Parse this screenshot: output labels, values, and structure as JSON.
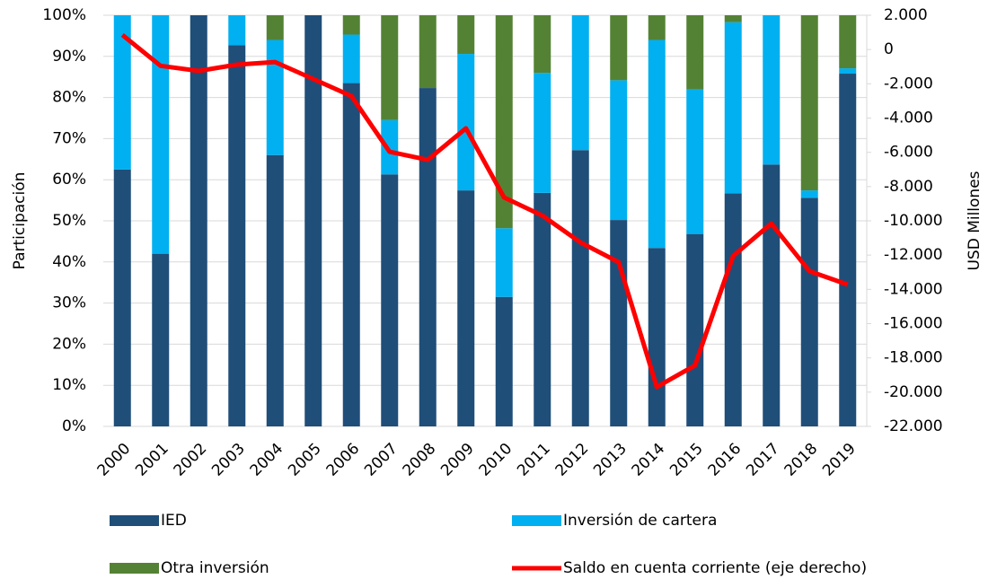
{
  "chart_data": {
    "type": "bar-line",
    "y_label": "Participación",
    "y2_label": "USD Millones",
    "categories": [
      "2000",
      "2001",
      "2002",
      "2003",
      "2004",
      "2005",
      "2006",
      "2007",
      "2008",
      "2009",
      "2010",
      "2011",
      "2012",
      "2013",
      "2014",
      "2015",
      "2016",
      "2017",
      "2018",
      "2019"
    ],
    "series": [
      {
        "name": "IED",
        "type": "bar",
        "color": "#1f4e79",
        "values": [
          62.5,
          42,
          100,
          92.7,
          66,
          100,
          83.5,
          61.3,
          82.3,
          57.4,
          31.5,
          56.8,
          67.2,
          50.2,
          43.4,
          46.8,
          56.7,
          63.7,
          55.6,
          85.8
        ]
      },
      {
        "name": "Inversión de cartera",
        "type": "bar",
        "color": "#00b0f0",
        "values": [
          37.5,
          58,
          0,
          7.3,
          28,
          0,
          11.8,
          13.2,
          0,
          33.2,
          16.7,
          29.2,
          32.8,
          34,
          50.6,
          35.2,
          41.6,
          36.3,
          1.8,
          1.3
        ]
      },
      {
        "name": "Otra inversión",
        "type": "bar",
        "color": "#548235",
        "values": [
          0,
          0,
          0,
          0,
          6,
          0,
          4.7,
          25.5,
          17.7,
          9.4,
          51.8,
          14,
          0,
          15.8,
          6,
          18,
          1.7,
          0,
          42.6,
          12.9
        ]
      },
      {
        "name": "Saldo en cuenta corriente (eje derecho)",
        "type": "line",
        "axis": "y2",
        "color": "#ff0000",
        "values": [
          850,
          -950,
          -1250,
          -880,
          -730,
          -1720,
          -2720,
          -5970,
          -6440,
          -4600,
          -8640,
          -9690,
          -11260,
          -12410,
          -19700,
          -18440,
          -12050,
          -10160,
          -12940,
          -13720
        ]
      }
    ],
    "ylim": [
      0,
      100
    ],
    "yticks": [
      {
        "value": 0,
        "label": "0%"
      },
      {
        "value": 10,
        "label": "10%"
      },
      {
        "value": 20,
        "label": "20%"
      },
      {
        "value": 30,
        "label": "30%"
      },
      {
        "value": 40,
        "label": "40%"
      },
      {
        "value": 50,
        "label": "50%"
      },
      {
        "value": 60,
        "label": "60%"
      },
      {
        "value": 70,
        "label": "70%"
      },
      {
        "value": 80,
        "label": "80%"
      },
      {
        "value": 90,
        "label": "90%"
      },
      {
        "value": 100,
        "label": "100%"
      }
    ],
    "y2lim": [
      -22000,
      2000
    ],
    "y2ticks": [
      {
        "value": 2000,
        "label": "2.000"
      },
      0,
      {
        "value": -2000,
        "label": "-2.000"
      },
      {
        "value": -4000,
        "label": "-4.000"
      },
      {
        "value": -6000,
        "label": "-6.000"
      },
      {
        "value": -8000,
        "label": "-8.000"
      },
      {
        "value": -10000,
        "label": "-10.000"
      },
      {
        "value": -12000,
        "label": "-12.000"
      },
      {
        "value": -14000,
        "label": "-14.000"
      },
      {
        "value": -16000,
        "label": "-16.000"
      },
      {
        "value": -18000,
        "label": "-18.000"
      },
      {
        "value": -20000,
        "label": "-20.000"
      },
      {
        "value": -22000,
        "label": "-22.000"
      }
    ],
    "grid": true
  }
}
